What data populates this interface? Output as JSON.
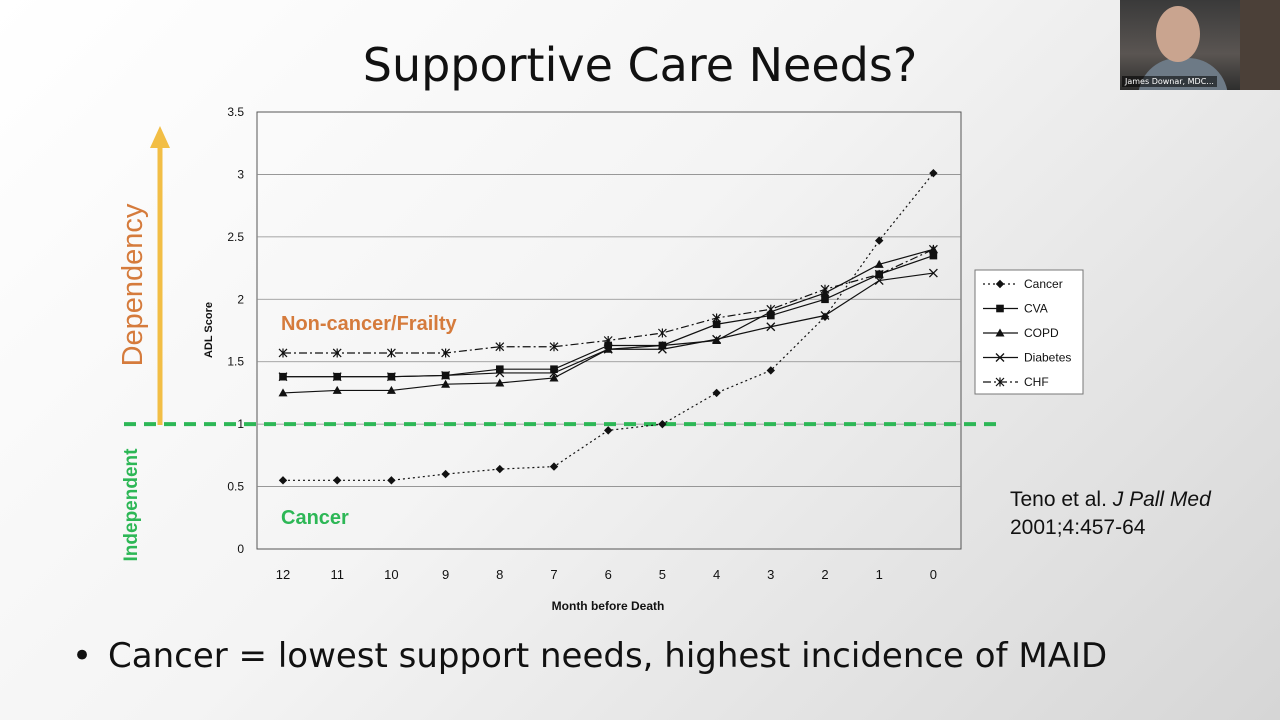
{
  "slide": {
    "title": "Supportive Care Needs?",
    "bullet": "Cancer = lowest support needs, highest incidence of MAID",
    "citation_authors": "Teno et al.",
    "citation_journal": "J Pall Med",
    "citation_ref": "2001;4:457-64"
  },
  "webcam": {
    "name": "James Downar, MDC..."
  },
  "annotations": {
    "dependency": "Dependency",
    "independent": "Independent",
    "noncancer": "Non-cancer/Frailty",
    "cancer": "Cancer"
  },
  "colors": {
    "orange": "#D57B3C",
    "green": "#2DB756",
    "arrow": "#F2BE45"
  },
  "chart_data": {
    "type": "line",
    "title": "",
    "xlabel": "Month before Death",
    "ylabel": "ADL Score",
    "ylim": [
      0,
      3.5
    ],
    "yticks": [
      0,
      0.5,
      1,
      1.5,
      2,
      2.5,
      3,
      3.5
    ],
    "ytick_labels": [
      "0",
      "0.5",
      "1",
      "1.5",
      "2",
      "2.5",
      "3",
      "3.5"
    ],
    "x": [
      12,
      11,
      10,
      9,
      8,
      7,
      6,
      5,
      4,
      3,
      2,
      1,
      0
    ],
    "grid": "horizontal",
    "legend": "right",
    "threshold_line": 1.0,
    "series": [
      {
        "name": "Cancer",
        "marker": "diamond",
        "dash": "dotted",
        "values": [
          0.55,
          0.55,
          0.55,
          0.6,
          0.64,
          0.66,
          0.95,
          1.0,
          1.25,
          1.43,
          1.86,
          2.47,
          3.01
        ]
      },
      {
        "name": "CVA",
        "marker": "square",
        "dash": "solid",
        "values": [
          1.38,
          1.38,
          1.38,
          1.39,
          1.44,
          1.44,
          1.63,
          1.63,
          1.8,
          1.87,
          2.0,
          2.2,
          2.35
        ]
      },
      {
        "name": "COPD",
        "marker": "triangle",
        "dash": "solid",
        "values": [
          1.25,
          1.27,
          1.27,
          1.32,
          1.33,
          1.37,
          1.6,
          1.63,
          1.67,
          1.9,
          2.05,
          2.28,
          2.4
        ]
      },
      {
        "name": "Diabetes",
        "marker": "x",
        "dash": "solid",
        "values": [
          1.38,
          1.38,
          1.38,
          1.39,
          1.41,
          1.41,
          1.6,
          1.6,
          1.68,
          1.78,
          1.87,
          2.15,
          2.21
        ]
      },
      {
        "name": "CHF",
        "marker": "star",
        "dash": "dashdot",
        "values": [
          1.57,
          1.57,
          1.57,
          1.57,
          1.62,
          1.62,
          1.67,
          1.73,
          1.85,
          1.92,
          2.08,
          2.2,
          2.4
        ]
      }
    ]
  }
}
